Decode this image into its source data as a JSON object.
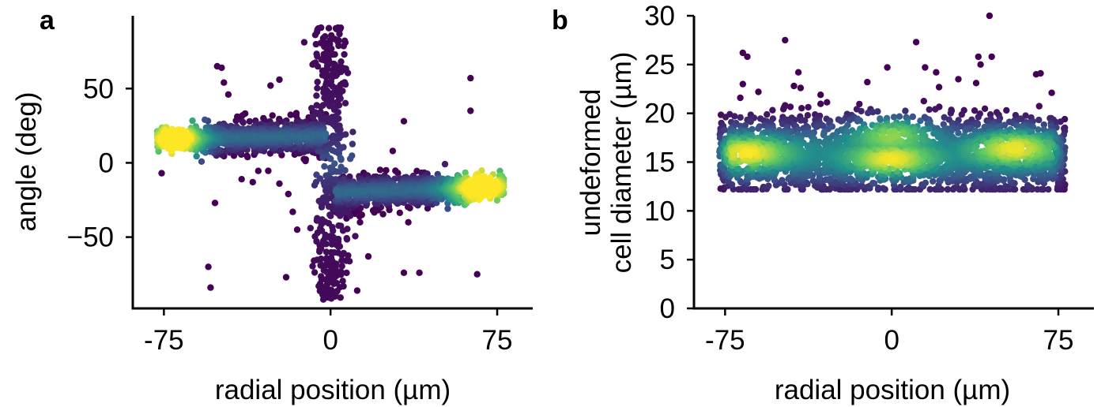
{
  "chart_data": [
    {
      "panel": "a",
      "type": "scatter",
      "xlabel": "radial position (µm)",
      "ylabel": "angle (deg)",
      "xlim": [
        -89,
        91
      ],
      "ylim": [
        -98,
        99
      ],
      "xticks": [
        -75,
        0,
        75
      ],
      "xtick_labels": [
        "-75",
        "0",
        "75"
      ],
      "yticks": [
        50,
        0,
        -50
      ],
      "ytick_labels": [
        "50",
        "0",
        "−50"
      ],
      "colormap": "viridis (color encodes point density)",
      "colors": [
        "#440154",
        "#3b528b",
        "#21918c",
        "#5ec962",
        "#fde725"
      ],
      "clusters": [
        {
          "name": "left band",
          "x_range": [
            -78,
            -2
          ],
          "y_at_x_start": 16,
          "y_at_x_end": 18,
          "y_spread": 5,
          "peak_x": -70
        },
        {
          "name": "right band",
          "x_range": [
            2,
            78
          ],
          "y_at_x_start": -20,
          "y_at_x_end": -16,
          "y_spread": 5,
          "peak_x": 68
        },
        {
          "name": "center streak",
          "x_center": 0,
          "x_spread": 4,
          "y_range": [
            -92,
            92
          ]
        }
      ],
      "outliers": [
        [
          -51,
          65
        ],
        [
          -49,
          64
        ],
        [
          -48,
          54
        ],
        [
          -46,
          46
        ],
        [
          -27,
          52
        ],
        [
          -23,
          56
        ],
        [
          -76,
          -7
        ],
        [
          -52,
          -27
        ],
        [
          -35,
          -13
        ],
        [
          -40,
          -11
        ],
        [
          -23,
          -14
        ],
        [
          -19,
          -21
        ],
        [
          -17,
          -33
        ],
        [
          -15,
          -45
        ],
        [
          -20,
          -77
        ],
        [
          -55,
          -70
        ],
        [
          -54,
          -84
        ],
        [
          33,
          28
        ],
        [
          33,
          -74
        ],
        [
          40,
          -74
        ],
        [
          63,
          57
        ],
        [
          63,
          35
        ],
        [
          66,
          -75
        ],
        [
          47,
          -22
        ],
        [
          35,
          -40
        ],
        [
          17,
          -63
        ],
        [
          12,
          -86
        ],
        [
          21,
          -20
        ],
        [
          25,
          -5
        ],
        [
          28,
          8
        ]
      ]
    },
    {
      "panel": "b",
      "type": "scatter",
      "xlabel": "radial position (µm)",
      "ylabel": "undeformed\ncell diameter (µm)",
      "ylabel_lines": [
        "undeformed",
        "cell diameter (µm)"
      ],
      "xlim": [
        -89,
        91
      ],
      "ylim": [
        0,
        30
      ],
      "xticks": [
        -75,
        0,
        75
      ],
      "xtick_labels": [
        "-75",
        "0",
        "75"
      ],
      "yticks": [
        30,
        25,
        20,
        15,
        10,
        5,
        0
      ],
      "ytick_labels": [
        "30",
        "25",
        "20",
        "15",
        "10",
        "5",
        "0"
      ],
      "colormap": "viridis (color encodes point density)",
      "colors": [
        "#440154",
        "#3b528b",
        "#21918c",
        "#5ec962",
        "#fde725"
      ],
      "clusters": [
        {
          "name": "band",
          "x_range": [
            -78,
            78
          ],
          "y_range": [
            12.2,
            21.5
          ],
          "density_peaks": [
            [
              -65,
              16.0
            ],
            [
              0,
              15.2
            ],
            [
              0,
              18.0
            ],
            [
              55,
              16.5
            ]
          ]
        }
      ],
      "outliers": [
        [
          -67,
          26.2
        ],
        [
          -65,
          25.8
        ],
        [
          -67,
          23.0
        ],
        [
          -48,
          27.5
        ],
        [
          -60,
          22.2
        ],
        [
          -44,
          22.8
        ],
        [
          -41,
          22.6
        ],
        [
          -32,
          21.9
        ],
        [
          -42,
          24.2
        ],
        [
          -2,
          24.7
        ],
        [
          -11,
          23.2
        ],
        [
          11,
          27.3
        ],
        [
          15,
          24.7
        ],
        [
          20,
          24.2
        ],
        [
          39,
          25.8
        ],
        [
          40,
          25.0
        ],
        [
          45,
          25.8
        ],
        [
          65,
          24.0
        ],
        [
          67,
          24.1
        ],
        [
          38,
          23.1
        ],
        [
          30,
          23.5
        ],
        [
          72,
          22.1
        ],
        [
          44,
          30.1
        ]
      ]
    }
  ],
  "panels": {
    "a": {
      "letter": "a",
      "xlabel": "radial position (µm)",
      "ylabel": "angle (deg)"
    },
    "b": {
      "letter": "b",
      "xlabel": "radial position (µm)",
      "ylabel_line1": "undeformed",
      "ylabel_line2": "cell diameter (µm)"
    }
  }
}
